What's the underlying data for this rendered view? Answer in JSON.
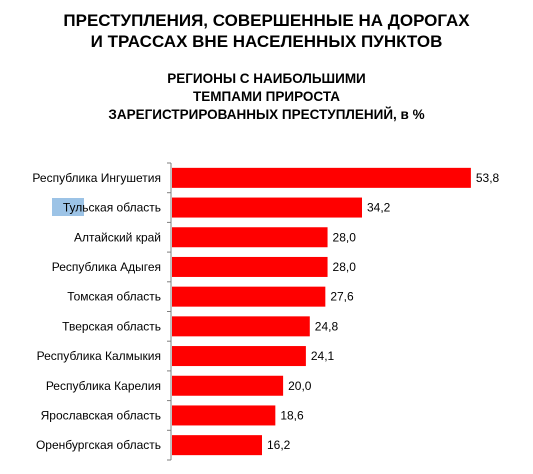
{
  "header": {
    "title_lines": [
      "ПРЕСТУПЛЕНИЯ, СОВЕРШЕННЫЕ НА ДОРОГАХ",
      "И ТРАССАХ ВНЕ НАСЕЛЕННЫХ ПУНКТОВ"
    ],
    "subtitle_lines": [
      "РЕГИОНЫ С НАИБОЛЬШИМИ",
      "ТЕМПАМИ ПРИРОСТА",
      "ЗАРЕГИСТРИРОВАННЫХ ПРЕСТУПЛЕНИЙ, в %"
    ]
  },
  "chart_data": {
    "type": "bar",
    "orientation": "horizontal",
    "title": "ПРЕСТУПЛЕНИЯ, СОВЕРШЕННЫЕ НА ДОРОГАХ И ТРАССАХ ВНЕ НАСЕЛЕННЫХ ПУНКТОВ",
    "subtitle": "РЕГИОНЫ С НАИБОЛЬШИМИ ТЕМПАМИ ПРИРОСТА ЗАРЕГИСТРИРОВАННЫХ ПРЕСТУПЛЕНИЙ, в %",
    "categories": [
      "Республика Ингушетия",
      "Тульская область",
      "Алтайский край",
      "Республика Адыгея",
      "Томская область",
      "Тверская область",
      "Республика Калмыкия",
      "Республика Карелия",
      "Ярославская область",
      "Оренбургская область"
    ],
    "values": [
      53.8,
      34.2,
      28.0,
      28.0,
      27.6,
      24.8,
      24.1,
      20.0,
      18.6,
      16.2
    ],
    "value_labels": [
      "53,8",
      "34,2",
      "28,0",
      "28,0",
      "27,6",
      "24,8",
      "24,1",
      "20,0",
      "18,6",
      "16,2"
    ],
    "xlim": [
      0,
      54
    ],
    "bar_color": "#ff0000",
    "axis_color": "#7f7f7f",
    "grid": false,
    "legend": false
  }
}
